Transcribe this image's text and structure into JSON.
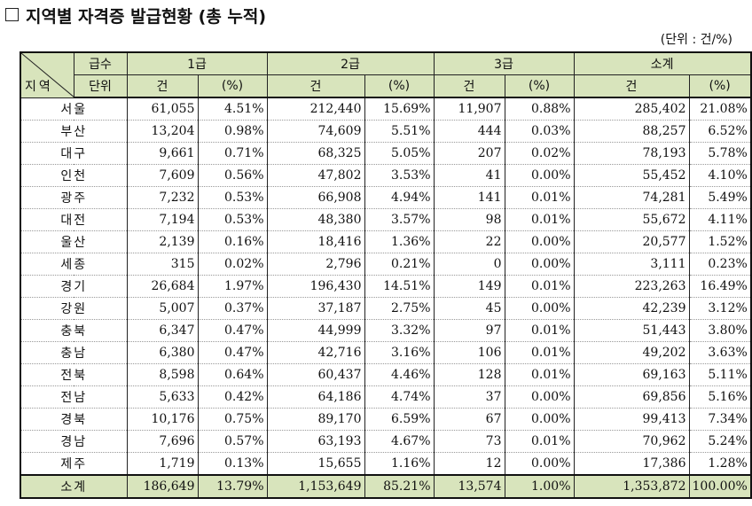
{
  "title": "지역별 자격증 발급현황 (총 누적)",
  "unit_note": "(단위 : 건/%)",
  "header": {
    "corner_top": "급수",
    "corner_left": "지역",
    "corner_bottom": "단위",
    "groups": [
      "1급",
      "2급",
      "3급",
      "소계"
    ],
    "count_label": "건",
    "pct_label": "(%)"
  },
  "rows": [
    {
      "region": "서울",
      "c1": "61,055",
      "p1": "4.51%",
      "c2": "212,440",
      "p2": "15.69%",
      "c3": "11,907",
      "p3": "0.88%",
      "ct": "285,402",
      "pt": "21.08%"
    },
    {
      "region": "부산",
      "c1": "13,204",
      "p1": "0.98%",
      "c2": "74,609",
      "p2": "5.51%",
      "c3": "444",
      "p3": "0.03%",
      "ct": "88,257",
      "pt": "6.52%"
    },
    {
      "region": "대구",
      "c1": "9,661",
      "p1": "0.71%",
      "c2": "68,325",
      "p2": "5.05%",
      "c3": "207",
      "p3": "0.02%",
      "ct": "78,193",
      "pt": "5.78%"
    },
    {
      "region": "인천",
      "c1": "7,609",
      "p1": "0.56%",
      "c2": "47,802",
      "p2": "3.53%",
      "c3": "41",
      "p3": "0.00%",
      "ct": "55,452",
      "pt": "4.10%"
    },
    {
      "region": "광주",
      "c1": "7,232",
      "p1": "0.53%",
      "c2": "66,908",
      "p2": "4.94%",
      "c3": "141",
      "p3": "0.01%",
      "ct": "74,281",
      "pt": "5.49%"
    },
    {
      "region": "대전",
      "c1": "7,194",
      "p1": "0.53%",
      "c2": "48,380",
      "p2": "3.57%",
      "c3": "98",
      "p3": "0.01%",
      "ct": "55,672",
      "pt": "4.11%"
    },
    {
      "region": "울산",
      "c1": "2,139",
      "p1": "0.16%",
      "c2": "18,416",
      "p2": "1.36%",
      "c3": "22",
      "p3": "0.00%",
      "ct": "20,577",
      "pt": "1.52%"
    },
    {
      "region": "세종",
      "c1": "315",
      "p1": "0.02%",
      "c2": "2,796",
      "p2": "0.21%",
      "c3": "0",
      "p3": "0.00%",
      "ct": "3,111",
      "pt": "0.23%"
    },
    {
      "region": "경기",
      "c1": "26,684",
      "p1": "1.97%",
      "c2": "196,430",
      "p2": "14.51%",
      "c3": "149",
      "p3": "0.01%",
      "ct": "223,263",
      "pt": "16.49%"
    },
    {
      "region": "강원",
      "c1": "5,007",
      "p1": "0.37%",
      "c2": "37,187",
      "p2": "2.75%",
      "c3": "45",
      "p3": "0.00%",
      "ct": "42,239",
      "pt": "3.12%"
    },
    {
      "region": "충북",
      "c1": "6,347",
      "p1": "0.47%",
      "c2": "44,999",
      "p2": "3.32%",
      "c3": "97",
      "p3": "0.01%",
      "ct": "51,443",
      "pt": "3.80%"
    },
    {
      "region": "충남",
      "c1": "6,380",
      "p1": "0.47%",
      "c2": "42,716",
      "p2": "3.16%",
      "c3": "106",
      "p3": "0.01%",
      "ct": "49,202",
      "pt": "3.63%"
    },
    {
      "region": "전북",
      "c1": "8,598",
      "p1": "0.64%",
      "c2": "60,437",
      "p2": "4.46%",
      "c3": "128",
      "p3": "0.01%",
      "ct": "69,163",
      "pt": "5.11%"
    },
    {
      "region": "전남",
      "c1": "5,633",
      "p1": "0.42%",
      "c2": "64,186",
      "p2": "4.74%",
      "c3": "37",
      "p3": "0.00%",
      "ct": "69,856",
      "pt": "5.16%"
    },
    {
      "region": "경북",
      "c1": "10,176",
      "p1": "0.75%",
      "c2": "89,170",
      "p2": "6.59%",
      "c3": "67",
      "p3": "0.00%",
      "ct": "99,413",
      "pt": "7.34%"
    },
    {
      "region": "경남",
      "c1": "7,696",
      "p1": "0.57%",
      "c2": "63,193",
      "p2": "4.67%",
      "c3": "73",
      "p3": "0.01%",
      "ct": "70,962",
      "pt": "5.24%"
    },
    {
      "region": "제주",
      "c1": "1,719",
      "p1": "0.13%",
      "c2": "15,655",
      "p2": "1.16%",
      "c3": "12",
      "p3": "0.00%",
      "ct": "17,386",
      "pt": "1.28%"
    }
  ],
  "total": {
    "region": "소계",
    "c1": "186,649",
    "p1": "13.79%",
    "c2": "1,153,649",
    "p2": "85.21%",
    "c3": "13,574",
    "p3": "1.00%",
    "ct": "1,353,872",
    "pt": "100.00%"
  },
  "colors": {
    "header_bg": "#d8e4bc",
    "border": "#222222"
  }
}
